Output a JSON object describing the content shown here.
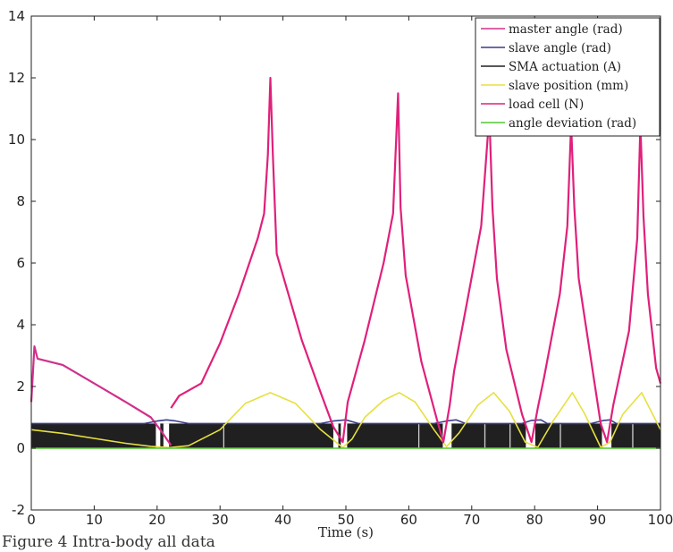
{
  "caption": "Figure 4 Intra-body all data",
  "chart_data": {
    "type": "line",
    "xlabel": "Time (s)",
    "ylabel": "",
    "xlim": [
      0,
      100
    ],
    "ylim": [
      -2,
      14
    ],
    "xticks": [
      0,
      10,
      20,
      30,
      40,
      50,
      60,
      70,
      80,
      90,
      100
    ],
    "yticks": [
      -2,
      0,
      2,
      4,
      6,
      8,
      10,
      12,
      14
    ],
    "grid": false,
    "legend_position": "top-right",
    "series": [
      {
        "name": "master angle (rad)",
        "color": "#d0308a",
        "x": [
          0,
          0.5,
          1,
          5,
          10,
          15,
          19,
          20.5,
          21.5,
          22.2
        ],
        "y": [
          1.5,
          3.3,
          2.9,
          2.7,
          2.1,
          1.5,
          1.0,
          0.6,
          0.3,
          0.1
        ]
      },
      {
        "name": "slave angle (rad)",
        "color": "#3a3c8a",
        "x": [
          0,
          18,
          20,
          21.5,
          23,
          25,
          46,
          48,
          50,
          52,
          64,
          66,
          67.5,
          69,
          78,
          79.5,
          81,
          82,
          89,
          91,
          92,
          93,
          100
        ],
        "y": [
          0.8,
          0.8,
          0.88,
          0.92,
          0.88,
          0.8,
          0.8,
          0.88,
          0.92,
          0.8,
          0.8,
          0.88,
          0.92,
          0.8,
          0.8,
          0.9,
          0.92,
          0.8,
          0.8,
          0.9,
          0.92,
          0.8,
          0.8
        ]
      },
      {
        "name": "SMA actuation (A)",
        "color": "#202020",
        "x": [
          0,
          100
        ],
        "y": [
          0.8,
          0.8
        ]
      },
      {
        "name": "slave position (mm)",
        "color": "#e6e040",
        "x": [
          0,
          5,
          10,
          15,
          19,
          22,
          25,
          30,
          34,
          38,
          42,
          46,
          49.5,
          51,
          53,
          56,
          58.5,
          61,
          64,
          66,
          68,
          71,
          73.5,
          76,
          78.5,
          80.5,
          83,
          86,
          88,
          90.5,
          92,
          94,
          97,
          99,
          100
        ],
        "y": [
          0.6,
          0.48,
          0.32,
          0.16,
          0.06,
          0.02,
          0.08,
          0.6,
          1.45,
          1.8,
          1.45,
          0.6,
          0.02,
          0.3,
          1.0,
          1.55,
          1.8,
          1.5,
          0.6,
          0.05,
          0.5,
          1.4,
          1.8,
          1.2,
          0.2,
          0.03,
          0.9,
          1.8,
          1.1,
          0.03,
          0.2,
          1.1,
          1.8,
          1.0,
          0.6
        ]
      },
      {
        "name": "load cell (N)",
        "color": "#e0207a",
        "x": [
          22.2,
          23.5,
          27,
          30,
          33,
          36,
          37,
          37.6,
          38,
          38.4,
          39,
          40,
          43,
          46,
          48,
          49.5,
          50.3,
          53,
          56,
          57.5,
          58.3,
          58.7,
          59.5,
          62,
          64.5,
          65.5,
          66.5,
          67.2,
          69.5,
          71.5,
          72.8,
          73.3,
          74,
          75.5,
          78,
          79.5,
          80.5,
          81.5,
          84,
          85.2,
          85.8,
          86.3,
          87,
          89,
          90.5,
          91.5,
          92.5,
          95,
          96.3,
          96.8,
          97.3,
          98,
          99.3,
          100
        ],
        "y": [
          1.3,
          1.7,
          2.1,
          3.4,
          5.0,
          6.8,
          7.6,
          9.5,
          12.0,
          9.5,
          6.3,
          5.6,
          3.5,
          1.8,
          0.7,
          0.2,
          1.5,
          3.5,
          6.0,
          7.6,
          11.5,
          7.8,
          5.6,
          2.8,
          0.9,
          0.2,
          1.4,
          2.5,
          5.0,
          7.2,
          10.8,
          7.8,
          5.5,
          3.2,
          1.1,
          0.2,
          1.3,
          2.3,
          5.0,
          7.2,
          10.5,
          7.8,
          5.5,
          2.8,
          0.8,
          0.2,
          1.4,
          3.8,
          6.8,
          10.5,
          7.5,
          5.0,
          2.6,
          2.1
        ]
      },
      {
        "name": "angle deviation (rad)",
        "color": "#50c830",
        "x": [
          0,
          100
        ],
        "y": [
          0.0,
          0.0
        ]
      }
    ],
    "sma_gaps": [
      [
        19.8,
        20.5
      ],
      [
        21.0,
        21.9
      ],
      [
        48.0,
        48.8
      ],
      [
        49.2,
        50.2
      ],
      [
        65.4,
        66.8
      ],
      [
        78.6,
        80.1
      ],
      [
        90.7,
        92.2
      ]
    ]
  }
}
